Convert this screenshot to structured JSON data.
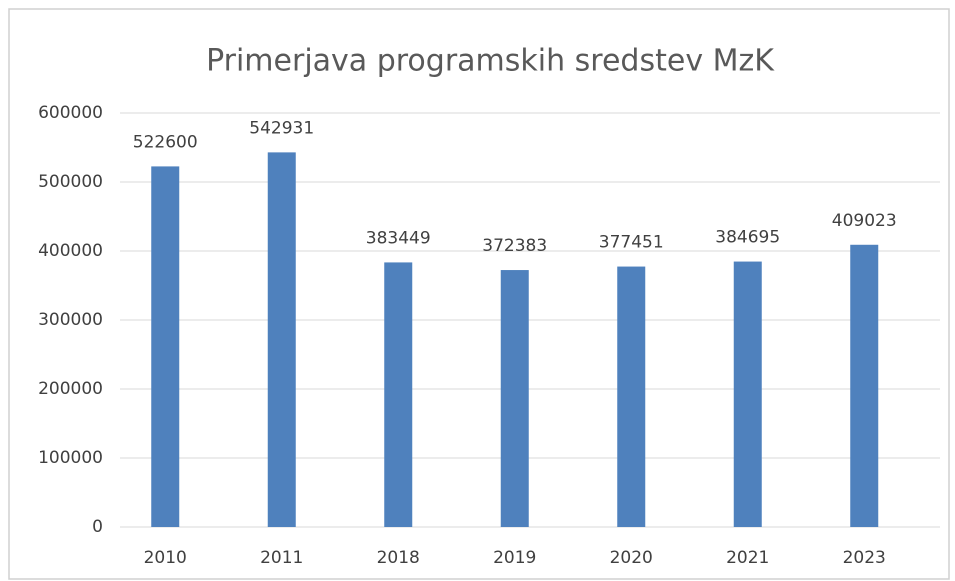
{
  "chart_data": {
    "type": "bar",
    "title": "Primerjava programskih sredstev MzK",
    "categories": [
      "2010",
      "2011",
      "2018",
      "2019",
      "2020",
      "2021",
      "2023"
    ],
    "values": [
      522600,
      542931,
      383449,
      372383,
      377451,
      384695,
      409023
    ],
    "color": "#4f81bd",
    "ylim": [
      0,
      600000
    ],
    "yticks": [
      0,
      100000,
      200000,
      300000,
      400000,
      500000,
      600000
    ],
    "grid": true
  }
}
